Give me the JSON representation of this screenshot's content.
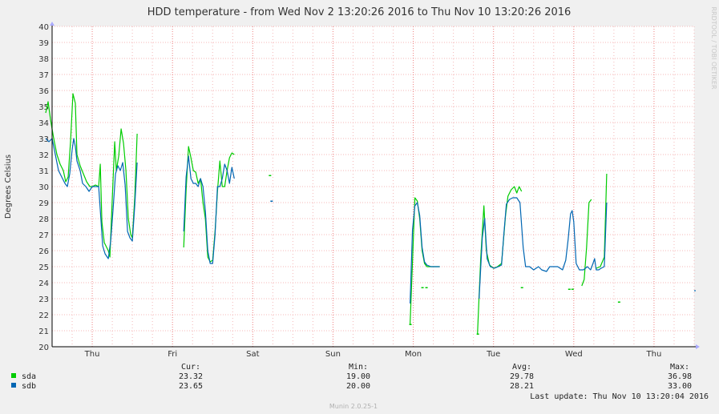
{
  "chart_data": {
    "type": "line",
    "title": "HDD temperature - from Wed Nov  2 13:20:26 2016 to Thu Nov 10 13:20:26 2016",
    "ylabel": "Degrees Celsius",
    "watermark": "RRDTOOL / TOBI OETIKER",
    "footer": "Munin 2.0.25-1",
    "ylim": [
      20,
      40
    ],
    "xlim": [
      0,
      8
    ],
    "y_ticks": [
      "20",
      "21",
      "22",
      "23",
      "24",
      "25",
      "26",
      "27",
      "28",
      "29",
      "30",
      "31",
      "32",
      "33",
      "34",
      "35",
      "36",
      "37",
      "38",
      "39",
      "40"
    ],
    "x_ticks": [
      {
        "label": "Thu",
        "pos": 0.5
      },
      {
        "label": "Fri",
        "pos": 1.5
      },
      {
        "label": "Sat",
        "pos": 2.5
      },
      {
        "label": "Sun",
        "pos": 3.5
      },
      {
        "label": "Mon",
        "pos": 4.5
      },
      {
        "label": "Tue",
        "pos": 5.5
      },
      {
        "label": "Wed",
        "pos": 6.5
      },
      {
        "label": "Thu",
        "pos": 7.5
      }
    ],
    "colors": {
      "sda": "#00cc00",
      "sdb": "#0066b3",
      "grid_major": "#f08080",
      "grid_minor": "#f4b7b7",
      "axis_arrow": "#aaaaff"
    },
    "legend_headers": {
      "cur": "Cur:",
      "min": "Min:",
      "avg": "Avg:",
      "max": "Max:"
    },
    "last_update": "Last update:  Thu Nov 10 13:20:04 2016",
    "series": [
      {
        "name": "sda",
        "stats": {
          "cur": "23.32",
          "min": "19.00",
          "avg": "29.78",
          "max": "36.98"
        },
        "segments": [
          [
            [
              -0.08,
              34.6
            ],
            [
              -0.05,
              35.3
            ],
            [
              -0.02,
              34.2
            ],
            [
              0.02,
              33.0
            ],
            [
              0.06,
              32.0
            ],
            [
              0.1,
              31.4
            ],
            [
              0.14,
              31.0
            ],
            [
              0.17,
              30.3
            ],
            [
              0.2,
              30.6
            ],
            [
              0.23,
              32.8
            ],
            [
              0.26,
              35.8
            ],
            [
              0.29,
              35.2
            ],
            [
              0.31,
              32.0
            ],
            [
              0.35,
              31.3
            ],
            [
              0.39,
              30.8
            ],
            [
              0.43,
              30.3
            ],
            [
              0.47,
              30.0
            ],
            [
              0.5,
              30.0
            ],
            [
              0.54,
              30.1
            ],
            [
              0.58,
              30.0
            ],
            [
              0.6,
              31.4
            ],
            [
              0.62,
              27.8
            ],
            [
              0.65,
              26.5
            ],
            [
              0.7,
              26.0
            ],
            [
              0.72,
              25.6
            ],
            [
              0.75,
              29.3
            ],
            [
              0.78,
              32.8
            ],
            [
              0.8,
              31.0
            ],
            [
              0.83,
              31.9
            ],
            [
              0.86,
              33.6
            ],
            [
              0.89,
              32.7
            ],
            [
              0.92,
              31.0
            ],
            [
              0.95,
              28.0
            ],
            [
              0.98,
              27.0
            ],
            [
              1.0,
              26.8
            ],
            [
              1.03,
              29.3
            ],
            [
              1.06,
              33.3
            ]
          ],
          [
            [
              1.64,
              26.2
            ],
            [
              1.67,
              29.8
            ],
            [
              1.7,
              32.5
            ],
            [
              1.73,
              31.8
            ],
            [
              1.76,
              31.0
            ],
            [
              1.79,
              30.9
            ],
            [
              1.82,
              30.2
            ],
            [
              1.85,
              30.5
            ],
            [
              1.88,
              29.0
            ],
            [
              1.91,
              28.0
            ],
            [
              1.94,
              25.6
            ],
            [
              1.97,
              25.3
            ],
            [
              2.0,
              25.4
            ],
            [
              2.03,
              27.2
            ],
            [
              2.06,
              29.7
            ],
            [
              2.09,
              31.6
            ],
            [
              2.12,
              30.0
            ],
            [
              2.15,
              30.0
            ],
            [
              2.18,
              31.0
            ],
            [
              2.21,
              31.8
            ],
            [
              2.24,
              32.1
            ],
            [
              2.27,
              32.0
            ]
          ]
        ],
        "points": [
          [
            2.71,
            30.7
          ],
          [
            4.46,
            21.4
          ],
          [
            4.61,
            23.7
          ],
          [
            4.66,
            23.7
          ],
          [
            5.3,
            20.8
          ],
          [
            5.85,
            23.7
          ],
          [
            6.44,
            23.6
          ],
          [
            6.48,
            23.6
          ],
          [
            7.06,
            22.8
          ]
        ],
        "late_segments": [
          [
            [
              4.46,
              21.4
            ],
            [
              4.49,
              25.3
            ],
            [
              4.52,
              29.3
            ],
            [
              4.55,
              29.1
            ],
            [
              4.58,
              28.0
            ],
            [
              4.61,
              26.0
            ],
            [
              4.64,
              25.2
            ],
            [
              4.67,
              25.0
            ],
            [
              4.7,
              25.0
            ],
            [
              4.75,
              25.0
            ],
            [
              4.8,
              25.0
            ],
            [
              4.83,
              25.0
            ]
          ],
          [
            [
              5.3,
              20.8
            ],
            [
              5.34,
              25.5
            ],
            [
              5.38,
              28.8
            ],
            [
              5.41,
              26.0
            ],
            [
              5.45,
              25.1
            ],
            [
              5.5,
              24.9
            ],
            [
              5.55,
              25.0
            ],
            [
              5.6,
              25.2
            ],
            [
              5.65,
              28.2
            ],
            [
              5.68,
              29.4
            ],
            [
              5.72,
              29.8
            ],
            [
              5.76,
              30.0
            ],
            [
              5.79,
              29.6
            ],
            [
              5.82,
              30.0
            ],
            [
              5.85,
              29.7
            ]
          ],
          [
            [
              6.6,
              23.8
            ],
            [
              6.63,
              24.2
            ],
            [
              6.66,
              26.2
            ],
            [
              6.69,
              29.0
            ],
            [
              6.72,
              29.2
            ]
          ],
          [
            [
              6.78,
              24.9
            ],
            [
              6.83,
              25.0
            ],
            [
              6.88,
              25.6
            ],
            [
              6.91,
              30.8
            ]
          ]
        ]
      },
      {
        "name": "sdb",
        "stats": {
          "cur": "23.65",
          "min": "20.00",
          "avg": "28.21",
          "max": "33.00"
        },
        "segments": [
          [
            [
              -0.08,
              33.0
            ],
            [
              -0.04,
              32.8
            ],
            [
              0.0,
              33.0
            ],
            [
              0.04,
              32.0
            ],
            [
              0.08,
              31.0
            ],
            [
              0.12,
              30.6
            ],
            [
              0.16,
              30.2
            ],
            [
              0.19,
              30.0
            ],
            [
              0.22,
              30.8
            ],
            [
              0.25,
              32.3
            ],
            [
              0.27,
              33.0
            ],
            [
              0.29,
              32.5
            ],
            [
              0.31,
              31.6
            ],
            [
              0.35,
              31.0
            ],
            [
              0.38,
              30.2
            ],
            [
              0.42,
              30.0
            ],
            [
              0.46,
              29.7
            ],
            [
              0.5,
              30.0
            ],
            [
              0.54,
              30.0
            ],
            [
              0.58,
              30.0
            ],
            [
              0.61,
              27.8
            ],
            [
              0.63,
              26.3
            ],
            [
              0.66,
              25.8
            ],
            [
              0.7,
              25.5
            ],
            [
              0.73,
              26.6
            ],
            [
              0.76,
              28.6
            ],
            [
              0.79,
              30.8
            ],
            [
              0.82,
              31.3
            ],
            [
              0.85,
              31.0
            ],
            [
              0.88,
              31.5
            ],
            [
              0.91,
              30.1
            ],
            [
              0.94,
              27.2
            ],
            [
              0.97,
              26.8
            ],
            [
              1.0,
              26.6
            ],
            [
              1.03,
              28.8
            ],
            [
              1.06,
              31.5
            ]
          ],
          [
            [
              1.64,
              27.2
            ],
            [
              1.67,
              30.6
            ],
            [
              1.7,
              31.9
            ],
            [
              1.73,
              30.5
            ],
            [
              1.76,
              30.2
            ],
            [
              1.79,
              30.2
            ],
            [
              1.82,
              30.0
            ],
            [
              1.85,
              30.5
            ],
            [
              1.88,
              30.0
            ],
            [
              1.91,
              28.5
            ],
            [
              1.94,
              26.0
            ],
            [
              1.97,
              25.2
            ],
            [
              2.0,
              25.2
            ],
            [
              2.03,
              27.0
            ],
            [
              2.06,
              30.0
            ],
            [
              2.09,
              30.0
            ],
            [
              2.12,
              30.5
            ],
            [
              2.15,
              31.4
            ],
            [
              2.18,
              31.0
            ],
            [
              2.21,
              30.2
            ],
            [
              2.24,
              31.2
            ],
            [
              2.27,
              30.5
            ]
          ]
        ],
        "points": [
          [
            2.73,
            29.1
          ]
        ],
        "late_segments": [
          [
            [
              4.46,
              22.7
            ],
            [
              4.49,
              27.3
            ],
            [
              4.52,
              28.8
            ],
            [
              4.55,
              29.0
            ],
            [
              4.58,
              28.2
            ],
            [
              4.61,
              26.2
            ],
            [
              4.64,
              25.3
            ],
            [
              4.67,
              25.1
            ],
            [
              4.72,
              25.0
            ],
            [
              4.78,
              25.0
            ],
            [
              4.83,
              25.0
            ]
          ],
          [
            [
              5.32,
              23.0
            ],
            [
              5.36,
              26.8
            ],
            [
              5.39,
              28.0
            ],
            [
              5.42,
              25.5
            ],
            [
              5.46,
              25.0
            ],
            [
              5.51,
              24.9
            ],
            [
              5.56,
              25.0
            ],
            [
              5.6,
              25.1
            ],
            [
              5.63,
              27.1
            ],
            [
              5.66,
              28.9
            ],
            [
              5.7,
              29.2
            ],
            [
              5.74,
              29.3
            ],
            [
              5.79,
              29.3
            ],
            [
              5.83,
              29.0
            ],
            [
              5.87,
              26.2
            ],
            [
              5.9,
              25.0
            ],
            [
              5.95,
              25.0
            ],
            [
              6.0,
              24.8
            ],
            [
              6.06,
              25.0
            ],
            [
              6.1,
              24.8
            ],
            [
              6.16,
              24.7
            ],
            [
              6.2,
              25.0
            ],
            [
              6.26,
              25.0
            ],
            [
              6.3,
              25.0
            ],
            [
              6.36,
              24.8
            ],
            [
              6.4,
              25.4
            ],
            [
              6.43,
              26.7
            ],
            [
              6.46,
              28.3
            ],
            [
              6.48,
              28.5
            ],
            [
              6.5,
              27.8
            ],
            [
              6.53,
              25.2
            ],
            [
              6.57,
              24.8
            ],
            [
              6.62,
              24.8
            ],
            [
              6.67,
              25.0
            ],
            [
              6.71,
              24.8
            ],
            [
              6.74,
              25.2
            ],
            [
              6.76,
              25.5
            ],
            [
              6.78,
              24.8
            ],
            [
              6.81,
              24.8
            ],
            [
              6.84,
              24.9
            ],
            [
              6.88,
              25.0
            ],
            [
              6.91,
              29.0
            ]
          ],
          [
            [
              8.0,
              23.5
            ],
            [
              8.02,
              23.5
            ]
          ]
        ]
      }
    ]
  }
}
